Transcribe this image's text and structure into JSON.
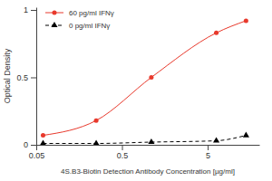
{
  "chart_data": {
    "type": "line",
    "x_label": "4S.B3-Biotin Detection Antibody Concentration [µg/ml]",
    "y_label": "Optical Density",
    "x": [
      0.06,
      0.25,
      1.1,
      6.3,
      14
    ],
    "series": [
      {
        "name": "60 pg/ml IFNγ",
        "color": "#e8392c",
        "marker": "circle",
        "line_style": "solid",
        "values": [
          0.07,
          0.18,
          0.5,
          0.83,
          0.92
        ]
      },
      {
        "name": "0 pg/ml IFNγ",
        "color": "#000000",
        "marker": "triangle",
        "line_style": "dashed",
        "values": [
          0.01,
          0.01,
          0.02,
          0.03,
          0.07
        ]
      }
    ],
    "log": "x",
    "xlim": [
      0.05,
      20
    ],
    "xticks": [
      0.05,
      0.5,
      5
    ],
    "ylim": [
      0,
      1.02
    ],
    "yticks": [
      0,
      0.5,
      1
    ],
    "legend": "top-left"
  }
}
